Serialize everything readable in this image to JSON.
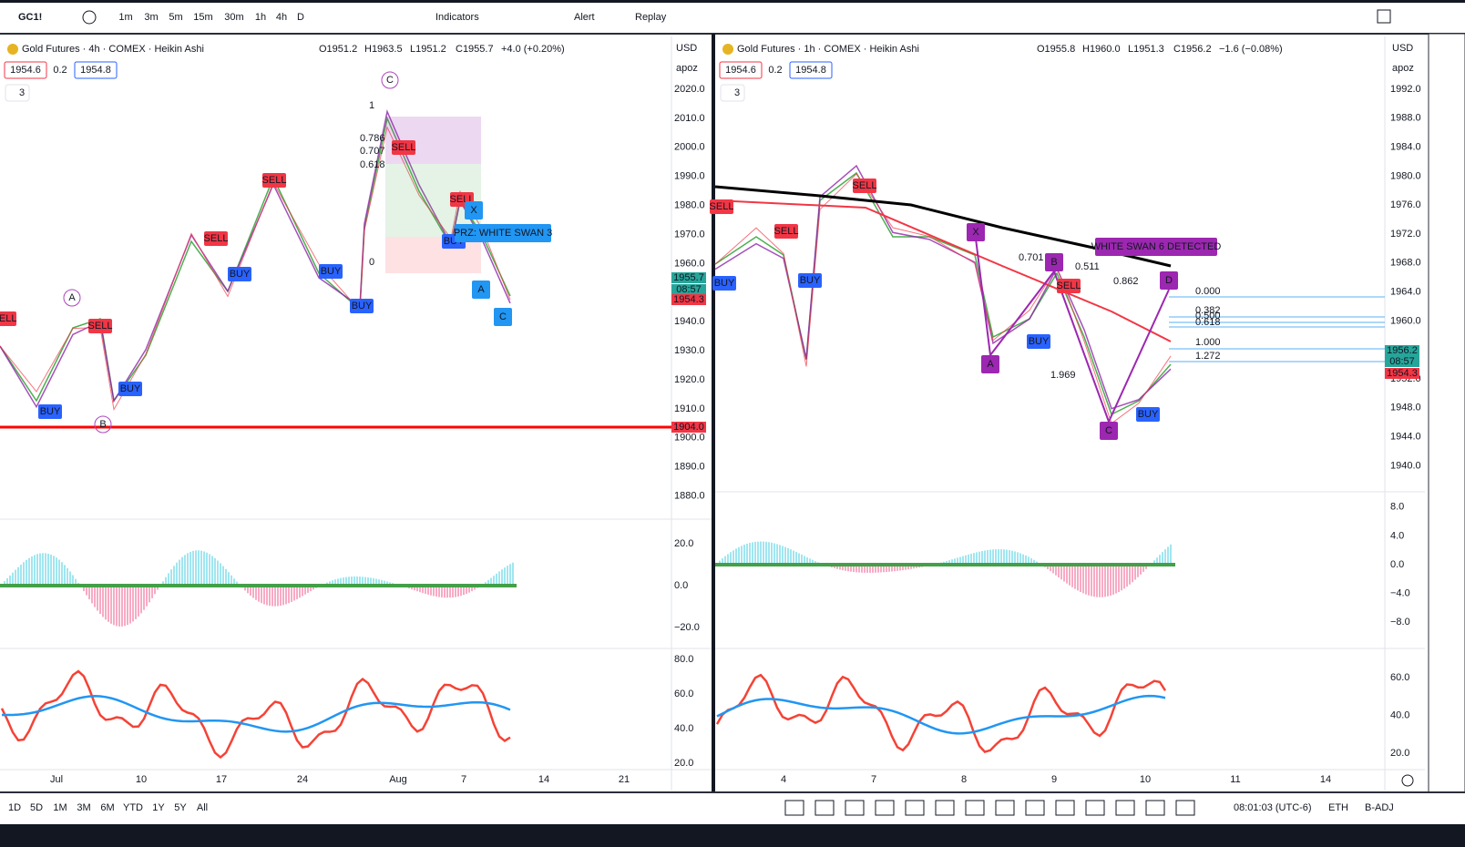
{
  "toolbar": {
    "symbol": "GC1!",
    "intervals": [
      "1m",
      "3m",
      "5m",
      "15m",
      "30m",
      "1h",
      "4h",
      "D"
    ],
    "active_interval": 5,
    "indicators": "Indicators",
    "alert": "Alert",
    "replay": "Replay"
  },
  "panes": [
    {
      "title": "Gold Futures · 4h · COMEX · Heikin Ashi",
      "open": "O1951.2",
      "high": "H1963.5",
      "low": "L1951.2",
      "close": "C1955.7",
      "change": "+4.0 (+0.20%)",
      "bid": "1954.6",
      "spread": "0.2",
      "ask": "1954.8",
      "indicators": "3",
      "currency": "USD",
      "scale": "apoz",
      "price_ticks": [
        "2020.0",
        "2010.0",
        "2000.0",
        "1990.0",
        "1980.0",
        "1970.0",
        "1960.0",
        "1940.0",
        "1930.0",
        "1920.0",
        "1910.0",
        "1900.0",
        "1890.0",
        "1880.0"
      ],
      "price_tags": [
        "1955.7",
        "08:57",
        "1954.3",
        "1904.0"
      ],
      "osc_ticks": [
        "20.0",
        "0.0",
        "−20.0"
      ],
      "rsi_ticks": [
        "80.0",
        "60.0",
        "40.0",
        "20.0"
      ],
      "dates": [
        "Jul",
        "10",
        "17",
        "24",
        "Aug",
        "7",
        "14",
        "21"
      ],
      "signals": [
        "SELL",
        "SELL",
        "SELL",
        "SELL",
        "SELL",
        "SELL",
        "BUY",
        "BUY",
        "BUY",
        "BUY",
        "BUY",
        "BUY"
      ],
      "pattern": [
        "X",
        "A",
        "C"
      ],
      "pattern_note": "PRZ: WHITE SWAN 3",
      "waves": [
        "C",
        "A",
        "B"
      ],
      "fib_levels": [
        "1",
        "0.786",
        "0.707",
        "0.618",
        "0"
      ]
    },
    {
      "title": "Gold Futures · 1h · COMEX · Heikin Ashi",
      "open": "O1955.8",
      "high": "H1960.0",
      "low": "L1951.3",
      "close": "C1956.2",
      "change": "−1.6 (−0.08%)",
      "bid": "1954.6",
      "spread": "0.2",
      "ask": "1954.8",
      "indicators": "3",
      "currency": "USD",
      "scale": "apoz",
      "price_ticks": [
        "1992.0",
        "1988.0",
        "1984.0",
        "1980.0",
        "1976.0",
        "1972.0",
        "1968.0",
        "1964.0",
        "1960.0",
        "1952.0",
        "1948.0",
        "1944.0",
        "1940.0"
      ],
      "price_tags": [
        "1956.2",
        "08:57",
        "1954.3"
      ],
      "osc_ticks": [
        "8.0",
        "4.0",
        "0.0",
        "−4.0",
        "−8.0"
      ],
      "rsi_ticks": [
        "60.0",
        "40.0",
        "20.0"
      ],
      "dates": [
        "4",
        "7",
        "8",
        "9",
        "10",
        "11",
        "14"
      ],
      "signals": [
        "SELL",
        "SELL",
        "SELL",
        "SELL",
        "BUY",
        "BUY",
        "BUY",
        "BUY"
      ],
      "pattern": [
        "X",
        "B",
        "A",
        "C",
        "D"
      ],
      "pattern_note": "WHITE SWAN 6 DETECTED",
      "pattern_ratios": [
        "0.701",
        "0.511",
        "0.862",
        "1.969"
      ],
      "fib_levels": [
        "0.000",
        "0.382",
        "0.500",
        "0.618",
        "1.000",
        "1.272"
      ]
    }
  ],
  "bottom": {
    "ranges": [
      "1D",
      "5D",
      "1M",
      "3M",
      "6M",
      "YTD",
      "1Y",
      "5Y",
      "All"
    ],
    "clock": "08:01:03 (UTC-6)",
    "session": "ETH",
    "adjust": "B-ADJ"
  }
}
